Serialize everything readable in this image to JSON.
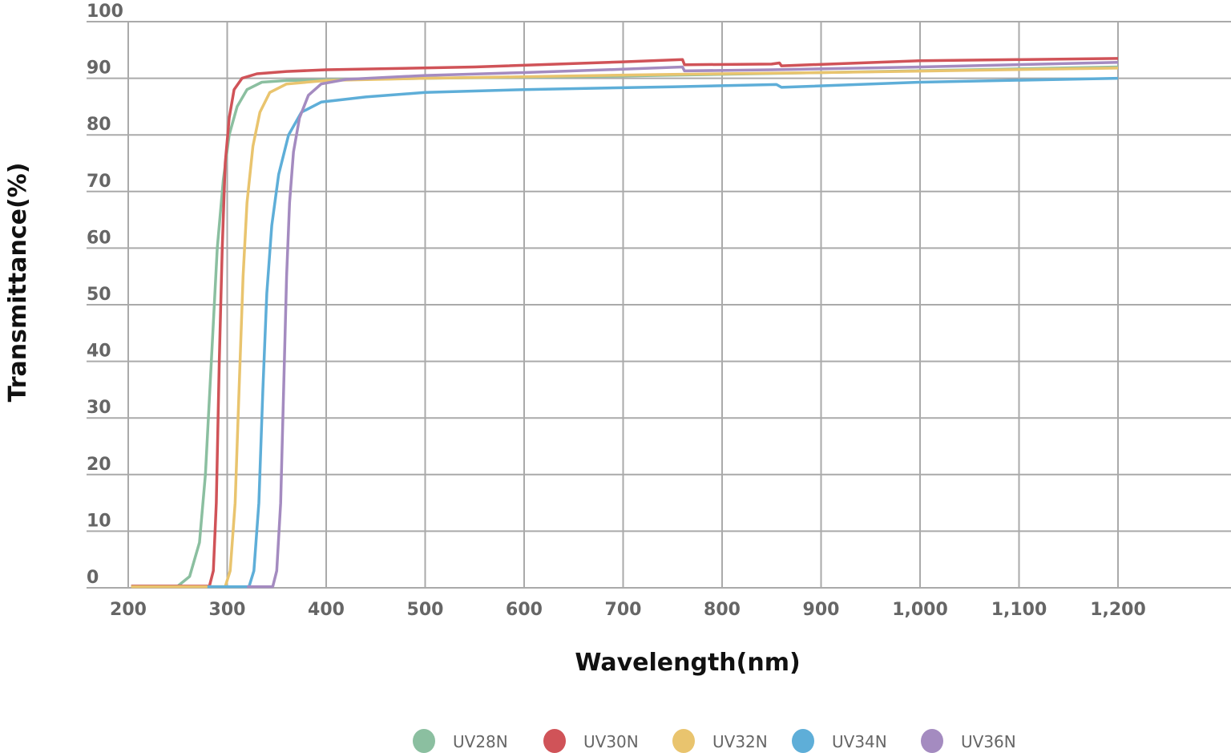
{
  "chart_data": {
    "type": "line",
    "title": "",
    "xlabel": "Wavelength(nm)",
    "ylabel": "Transmittance(%)",
    "xlim": [
      200,
      1200
    ],
    "ylim": [
      0,
      100
    ],
    "x_ticks": [
      "200",
      "300",
      "400",
      "500",
      "600",
      "700",
      "800",
      "900",
      "1,000",
      "1,100",
      "1,200"
    ],
    "y_ticks": [
      "0",
      "10",
      "20",
      "30",
      "40",
      "50",
      "60",
      "70",
      "80",
      "90",
      "100"
    ],
    "grid": true,
    "legend_placement": "bottom",
    "series": [
      {
        "name": "UV28N",
        "color": "#8bbfa0",
        "points": [
          [
            203,
            0.3
          ],
          [
            250,
            0.3
          ],
          [
            262,
            2
          ],
          [
            272,
            8
          ],
          [
            278,
            20
          ],
          [
            284,
            40
          ],
          [
            290,
            60
          ],
          [
            296,
            72
          ],
          [
            302,
            80
          ],
          [
            310,
            85
          ],
          [
            320,
            88
          ],
          [
            335,
            89.3
          ],
          [
            360,
            89.6
          ],
          [
            500,
            90
          ],
          [
            700,
            90.4
          ],
          [
            900,
            91
          ],
          [
            1200,
            92
          ]
        ]
      },
      {
        "name": "UV30N",
        "color": "#d05358",
        "points": [
          [
            203,
            0.3
          ],
          [
            282,
            0.3
          ],
          [
            286,
            3
          ],
          [
            289,
            15
          ],
          [
            292,
            40
          ],
          [
            295,
            60
          ],
          [
            298,
            75
          ],
          [
            302,
            83
          ],
          [
            307,
            88
          ],
          [
            315,
            90
          ],
          [
            330,
            90.8
          ],
          [
            360,
            91.2
          ],
          [
            400,
            91.5
          ],
          [
            550,
            92
          ],
          [
            700,
            92.9
          ],
          [
            760,
            93.3
          ],
          [
            762,
            92.4
          ],
          [
            850,
            92.5
          ],
          [
            858,
            92.7
          ],
          [
            860,
            92.2
          ],
          [
            1000,
            93.1
          ],
          [
            1200,
            93.5
          ]
        ]
      },
      {
        "name": "UV32N",
        "color": "#e9c46e",
        "points": [
          [
            203,
            0.2
          ],
          [
            298,
            0.2
          ],
          [
            303,
            3
          ],
          [
            308,
            15
          ],
          [
            312,
            35
          ],
          [
            316,
            55
          ],
          [
            320,
            68
          ],
          [
            326,
            78
          ],
          [
            333,
            84
          ],
          [
            343,
            87.5
          ],
          [
            360,
            89
          ],
          [
            400,
            89.6
          ],
          [
            500,
            90
          ],
          [
            750,
            90.7
          ],
          [
            900,
            91
          ],
          [
            1200,
            91.8
          ]
        ]
      },
      {
        "name": "UV34N",
        "color": "#5eaed8",
        "points": [
          [
            280,
            0.2
          ],
          [
            322,
            0.2
          ],
          [
            327,
            3
          ],
          [
            332,
            15
          ],
          [
            336,
            35
          ],
          [
            340,
            52
          ],
          [
            345,
            64
          ],
          [
            352,
            73
          ],
          [
            362,
            80
          ],
          [
            375,
            84
          ],
          [
            395,
            85.8
          ],
          [
            440,
            86.7
          ],
          [
            500,
            87.5
          ],
          [
            600,
            88
          ],
          [
            750,
            88.5
          ],
          [
            855,
            88.9
          ],
          [
            860,
            88.4
          ],
          [
            1000,
            89.3
          ],
          [
            1200,
            90
          ]
        ]
      },
      {
        "name": "UV36N",
        "color": "#a48bc0",
        "points": [
          [
            320,
            0.2
          ],
          [
            346,
            0.2
          ],
          [
            350,
            3
          ],
          [
            354,
            15
          ],
          [
            357,
            35
          ],
          [
            360,
            55
          ],
          [
            363,
            68
          ],
          [
            367,
            77
          ],
          [
            373,
            83
          ],
          [
            382,
            87
          ],
          [
            395,
            89
          ],
          [
            420,
            89.8
          ],
          [
            500,
            90.5
          ],
          [
            600,
            91
          ],
          [
            700,
            91.6
          ],
          [
            760,
            92
          ],
          [
            762,
            91.3
          ],
          [
            850,
            91.5
          ],
          [
            1000,
            92
          ],
          [
            1200,
            92.8
          ]
        ]
      }
    ]
  }
}
